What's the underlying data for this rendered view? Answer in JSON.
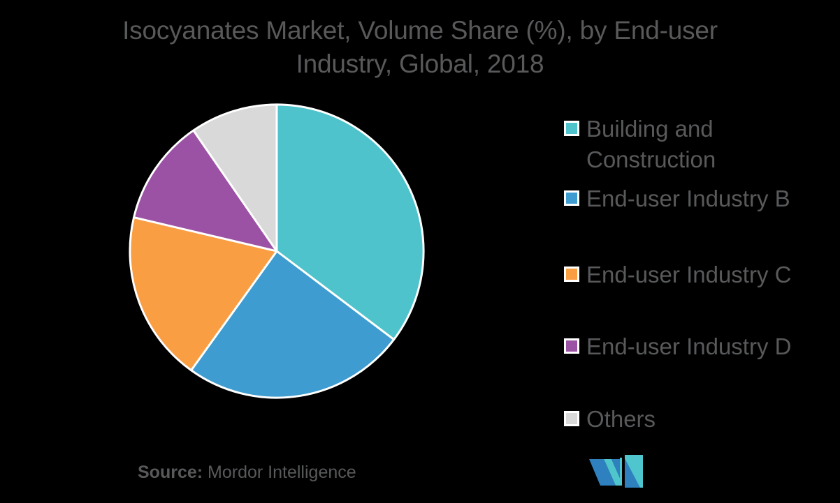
{
  "background": "#000000",
  "text_color": "#58595B",
  "title": {
    "full": "Isocyanates Market, Volume Share (%), by End-user Industry, Global, 2018",
    "line1": "Isocyanates Market, Volume Share (%), by End-user",
    "line2": "Industry, Global, 2018"
  },
  "chart_data": {
    "type": "pie",
    "title": "Isocyanates Market, Volume Share (%), by End-user Industry, Global, 2018",
    "unit": "%",
    "start_angle": "top",
    "direction": "clockwise",
    "legend_position": "right",
    "stroke_color": "#FFFFFF",
    "slices": [
      {
        "label": "Building and Construction",
        "value": 35.3,
        "color": "#4EC3CB"
      },
      {
        "label": "End-user Industry B",
        "value": 24.6,
        "color": "#3E9CD0"
      },
      {
        "label": "End-user Industry C",
        "value": 18.8,
        "color": "#FA9E44"
      },
      {
        "label": "End-user Industry D",
        "value": 11.7,
        "color": "#9C52A4"
      },
      {
        "label": "Others",
        "value": 9.6,
        "color": "#D9D9D9"
      }
    ]
  },
  "source": {
    "label": "Source:",
    "text": "Mordor Intelligence"
  },
  "logo": {
    "name": "Mordor Intelligence logo mark",
    "blue": "#2E81BE",
    "teal": "#4FC5CE"
  }
}
